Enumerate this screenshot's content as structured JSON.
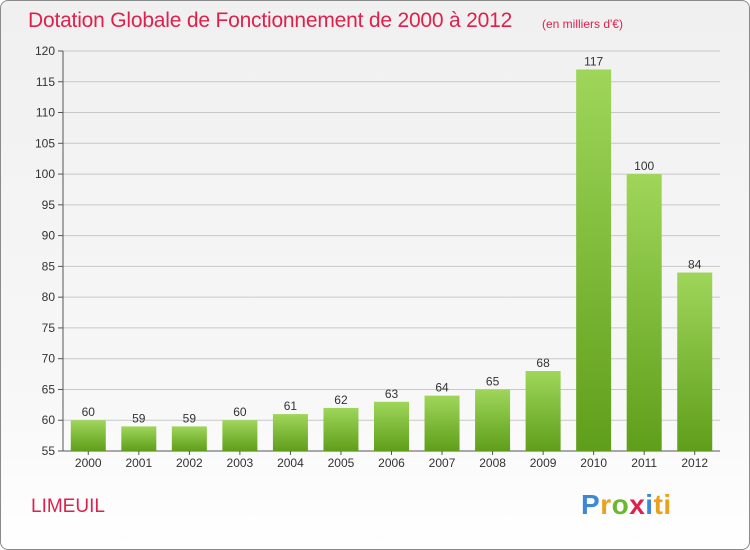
{
  "header": {
    "title": "Dotation Globale de Fonctionnement de 2000 à 2012",
    "unit": "(en milliers d'€)"
  },
  "footer": {
    "commune": "LIMEUIL",
    "logo": "Proxiti"
  },
  "colors": {
    "title": "#e0204c",
    "bar_top": "#9fd65a",
    "bar_bottom": "#5f9e1a",
    "grid": "#c8c8c8",
    "axis": "#555555"
  },
  "chart_data": {
    "type": "bar",
    "title": "Dotation Globale de Fonctionnement de 2000 à 2012",
    "xlabel": "",
    "ylabel": "",
    "categories": [
      "2000",
      "2001",
      "2002",
      "2003",
      "2004",
      "2005",
      "2006",
      "2007",
      "2008",
      "2009",
      "2010",
      "2011",
      "2012"
    ],
    "values": [
      60,
      59,
      59,
      60,
      61,
      62,
      63,
      64,
      65,
      68,
      117,
      100,
      84
    ],
    "ylim": [
      55,
      120
    ],
    "yticks": [
      55,
      60,
      65,
      70,
      75,
      80,
      85,
      90,
      95,
      100,
      105,
      110,
      115,
      120
    ],
    "grid": true,
    "data_labels": true
  }
}
